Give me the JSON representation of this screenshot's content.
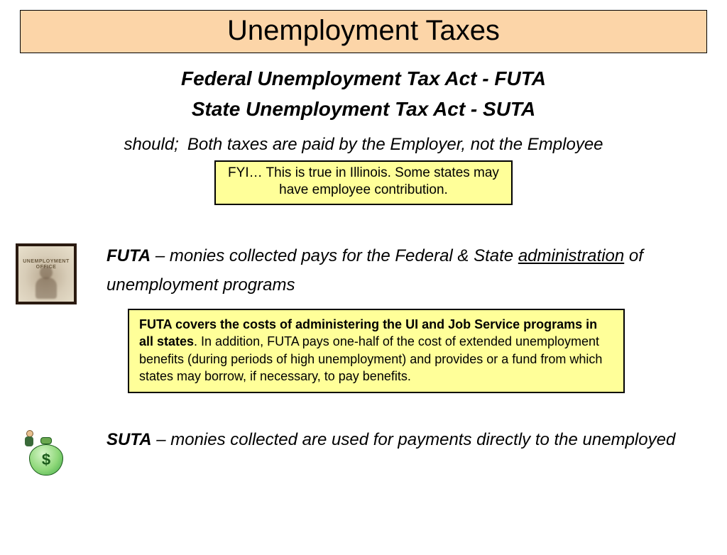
{
  "title": "Unemployment Taxes",
  "subtitle_line1": "Federal Unemployment Tax Act - FUTA",
  "subtitle_line2": "State Unemployment Tax Act - SUTA",
  "bullet_both": "Both taxes are paid by the Employer, not the Employee",
  "note1": "FYI… This is true in Illinois.  Some states may have employee contribution.",
  "futa": {
    "label": "FUTA",
    "text_before_underline": " – monies collected pays for the Federal & State ",
    "underlined": "administration",
    "text_after": " of unemployment programs"
  },
  "note2_bold": "FUTA covers the costs of administering the UI and Job Service programs in all states",
  "note2_rest": ". In addition, FUTA pays one-half of the cost of extended unemployment benefits (during periods of high unemployment) and provides or a fund from which states may borrow, if necessary, to pay benefits.",
  "suta": {
    "label": "SUTA",
    "text": " – monies collected are used for payments directly to the unemployed"
  },
  "photo_caption_line1": "UNEMPLOYMENT",
  "photo_caption_line2": "OFFICE",
  "colors": {
    "title_bg": "#fcd5a8",
    "note_bg": "#ffff99",
    "border": "#000000"
  }
}
